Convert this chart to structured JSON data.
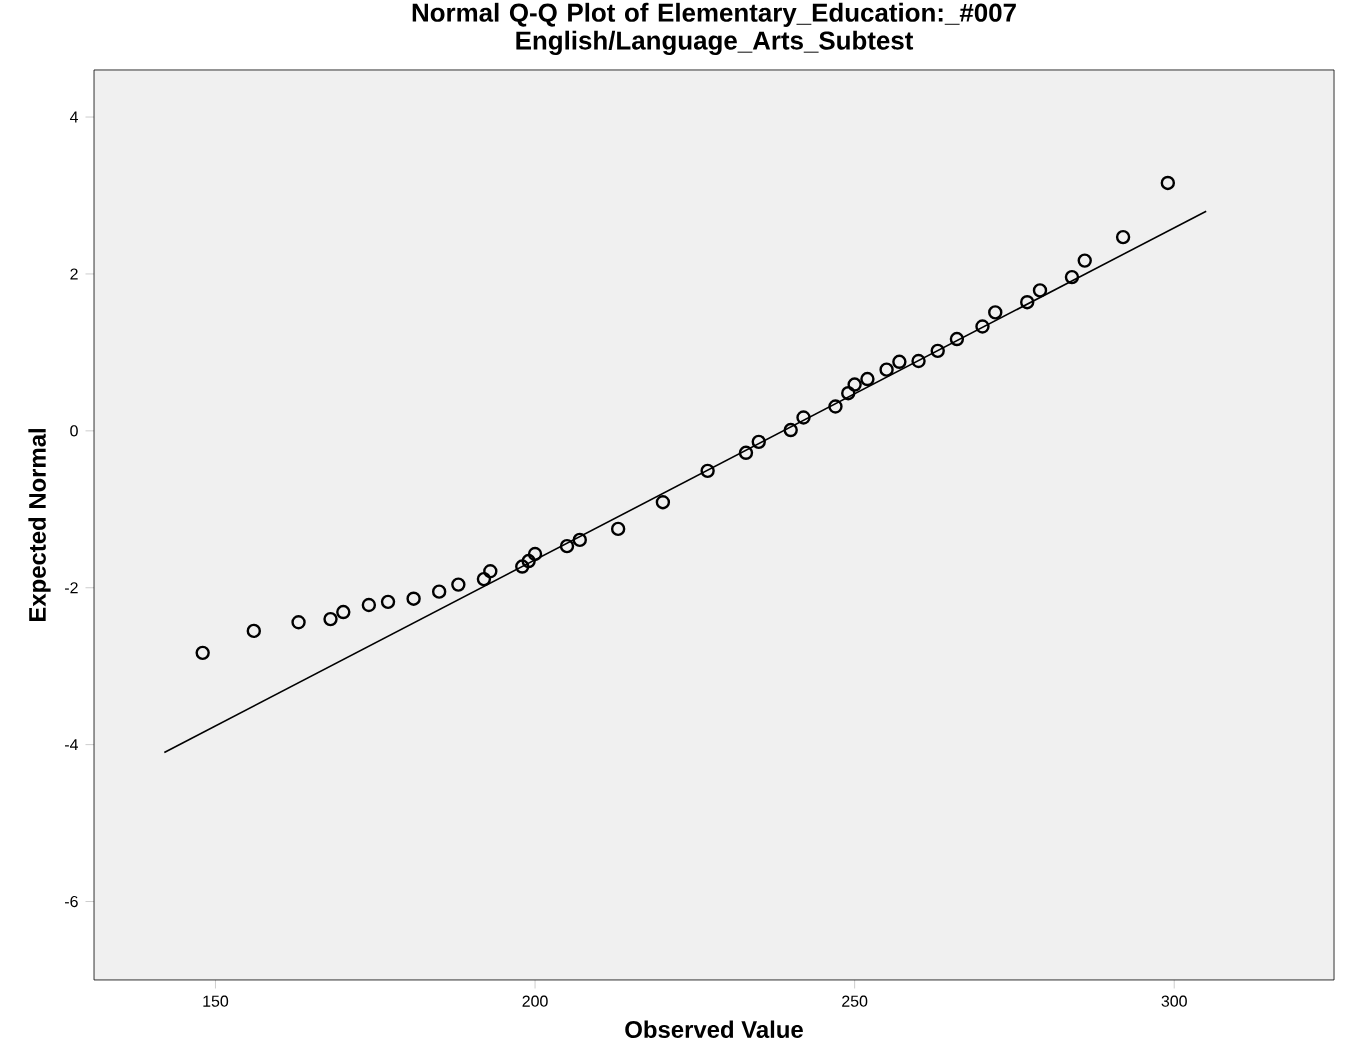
{
  "chart_data": {
    "type": "scatter",
    "title": "Normal Q-Q Plot of Elementary_Education:_#007 English/Language_Arts_Subtest",
    "xlabel": "Observed Value",
    "ylabel": "Expected Normal",
    "xlim": [
      131,
      325
    ],
    "ylim": [
      -7,
      4.6
    ],
    "xticks": [
      150,
      200,
      250,
      300
    ],
    "yticks": [
      -6,
      -4,
      -2,
      0,
      2,
      4
    ],
    "grid": false,
    "marker": "circle",
    "series": [
      {
        "color": "#000000",
        "x": [
          148,
          156,
          163,
          168,
          170,
          174,
          177,
          181,
          185,
          188,
          192,
          193,
          198,
          199,
          200,
          205,
          207,
          213,
          220,
          227,
          233,
          235,
          240,
          242,
          247,
          249,
          250,
          252,
          255,
          257,
          260,
          263,
          266,
          270,
          272,
          277,
          279,
          284,
          286,
          292,
          299
        ],
        "values": [
          -2.83,
          -2.55,
          -2.44,
          -2.4,
          -2.31,
          -2.22,
          -2.18,
          -2.14,
          -2.05,
          -1.96,
          -1.89,
          -1.79,
          -1.73,
          -1.66,
          -1.57,
          -1.47,
          -1.39,
          -1.25,
          -0.91,
          -0.51,
          -0.28,
          -0.14,
          0.01,
          0.17,
          0.31,
          0.48,
          0.59,
          0.66,
          0.78,
          0.88,
          0.89,
          1.02,
          1.17,
          1.33,
          1.51,
          1.64,
          1.79,
          1.96,
          2.17,
          2.47,
          3.16
        ]
      },
      {
        "type": "line",
        "color": "#000000",
        "marker": "none",
        "x": [
          142,
          305
        ],
        "values": [
          -4.1,
          2.8
        ]
      }
    ]
  }
}
